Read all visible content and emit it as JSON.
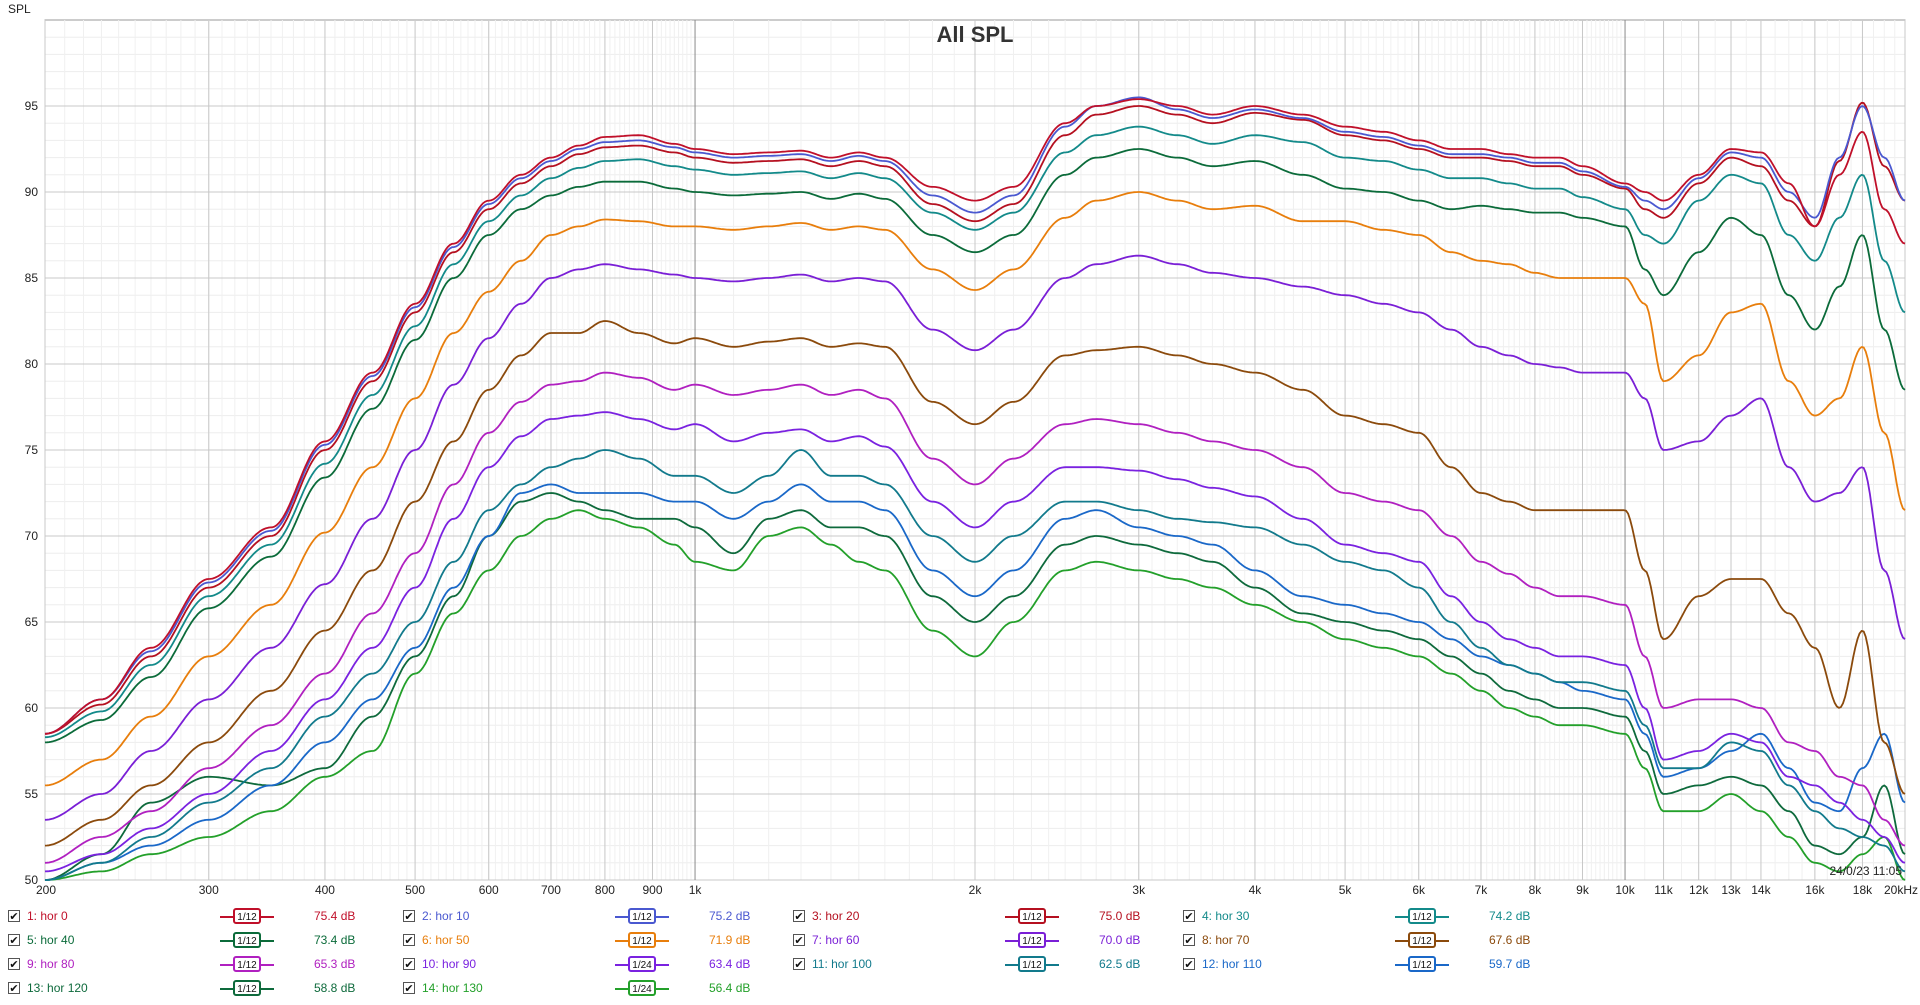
{
  "chart_data": {
    "type": "line",
    "title": "All SPL",
    "ylabel": "SPL",
    "xlabel": "",
    "x_scale": "log",
    "xlim": [
      200,
      20000
    ],
    "ylim": [
      50,
      100
    ],
    "grid": true,
    "y_ticks": [
      50,
      55,
      60,
      65,
      70,
      75,
      80,
      85,
      90,
      95
    ],
    "x_ticks": [
      {
        "f": 200,
        "label": "200"
      },
      {
        "f": 300,
        "label": "300"
      },
      {
        "f": 400,
        "label": "400"
      },
      {
        "f": 500,
        "label": "500"
      },
      {
        "f": 600,
        "label": "600"
      },
      {
        "f": 700,
        "label": "700"
      },
      {
        "f": 800,
        "label": "800"
      },
      {
        "f": 900,
        "label": "900"
      },
      {
        "f": 1000,
        "label": "1k"
      },
      {
        "f": 2000,
        "label": "2k"
      },
      {
        "f": 3000,
        "label": "3k"
      },
      {
        "f": 4000,
        "label": "4k"
      },
      {
        "f": 5000,
        "label": "5k"
      },
      {
        "f": 6000,
        "label": "6k"
      },
      {
        "f": 7000,
        "label": "7k"
      },
      {
        "f": 8000,
        "label": "8k"
      },
      {
        "f": 9000,
        "label": "9k"
      },
      {
        "f": 10000,
        "label": "10k"
      },
      {
        "f": 11000,
        "label": "11k",
        "dim": true
      },
      {
        "f": 12000,
        "label": "12k",
        "dim": true
      },
      {
        "f": 13000,
        "label": "13k",
        "dim": true
      },
      {
        "f": 14000,
        "label": "14k",
        "dim": true
      },
      {
        "f": 16000,
        "label": "16k",
        "dim": true
      },
      {
        "f": 18000,
        "label": "18k",
        "dim": true
      },
      {
        "f": 20000,
        "label": "20kHz"
      }
    ],
    "timestamp": "24/0/23 11:05",
    "x": [
      200,
      230,
      260,
      300,
      350,
      400,
      450,
      500,
      550,
      600,
      650,
      700,
      750,
      800,
      870,
      950,
      1000,
      1100,
      1200,
      1300,
      1400,
      1500,
      1600,
      1800,
      2000,
      2200,
      2500,
      2700,
      3000,
      3300,
      3600,
      4000,
      4500,
      5000,
      5500,
      6000,
      6500,
      7000,
      7500,
      8000,
      8500,
      9000,
      10000,
      10500,
      11000,
      12000,
      13000,
      14000,
      15000,
      16000,
      17000,
      18000,
      19000,
      20000
    ],
    "series": [
      {
        "name": "1: hor 0",
        "color": "#c0102a",
        "values": [
          58.5,
          60.5,
          63.5,
          67.5,
          70.5,
          75.5,
          79.5,
          83.5,
          87.0,
          89.5,
          91.0,
          92.0,
          92.7,
          93.2,
          93.3,
          92.8,
          92.5,
          92.2,
          92.3,
          92.4,
          92.0,
          92.3,
          92.0,
          90.3,
          89.5,
          90.3,
          94.0,
          95.0,
          95.4,
          95.0,
          94.5,
          95.0,
          94.5,
          93.8,
          93.5,
          93.0,
          92.5,
          92.5,
          92.2,
          92.0,
          92.0,
          91.5,
          90.5,
          90.0,
          89.5,
          91.0,
          92.5,
          92.3,
          90.5,
          88.0,
          91.0,
          93.5,
          89.0,
          87.0
        ]
      },
      {
        "name": "2: hor 10",
        "color": "#4a58d0",
        "values": [
          58.5,
          60.5,
          63.3,
          67.3,
          70.3,
          75.3,
          79.3,
          83.3,
          86.8,
          89.3,
          90.8,
          91.8,
          92.5,
          92.9,
          93.0,
          92.6,
          92.3,
          92.0,
          92.1,
          92.2,
          91.8,
          92.1,
          91.8,
          89.8,
          88.8,
          89.8,
          93.8,
          95.0,
          95.5,
          94.8,
          94.3,
          94.8,
          94.3,
          93.5,
          93.2,
          92.7,
          92.2,
          92.2,
          92.0,
          91.7,
          91.7,
          91.2,
          90.3,
          89.5,
          89.0,
          90.8,
          92.3,
          92.0,
          90.0,
          88.5,
          92.0,
          95.0,
          92.0,
          89.5
        ]
      },
      {
        "name": "3: hor 20",
        "color": "#b51020",
        "values": [
          58.5,
          60.2,
          63.0,
          67.0,
          70.0,
          75.0,
          79.0,
          83.0,
          86.5,
          89.0,
          90.5,
          91.5,
          92.2,
          92.6,
          92.7,
          92.3,
          92.0,
          91.7,
          91.8,
          91.9,
          91.5,
          91.8,
          91.5,
          89.3,
          88.3,
          89.3,
          93.3,
          94.5,
          95.0,
          94.5,
          94.0,
          94.6,
          94.2,
          93.3,
          93.0,
          92.5,
          92.0,
          92.0,
          91.8,
          91.5,
          91.5,
          91.0,
          90.2,
          89.0,
          88.5,
          90.5,
          92.0,
          91.5,
          89.5,
          88.0,
          91.8,
          95.2,
          91.5,
          89.5
        ]
      },
      {
        "name": "4: hor 30",
        "color": "#138a8a",
        "values": [
          58.3,
          59.8,
          62.5,
          66.5,
          69.5,
          74.2,
          78.2,
          82.2,
          85.8,
          88.3,
          89.8,
          90.8,
          91.4,
          91.8,
          91.9,
          91.5,
          91.3,
          91.0,
          91.1,
          91.2,
          90.8,
          91.1,
          90.8,
          88.8,
          87.8,
          88.8,
          92.3,
          93.3,
          93.8,
          93.3,
          92.8,
          93.3,
          92.9,
          92.0,
          91.8,
          91.3,
          90.8,
          90.8,
          90.5,
          90.2,
          90.2,
          89.7,
          89.0,
          87.5,
          87.0,
          89.5,
          91.0,
          90.5,
          87.5,
          86.0,
          88.5,
          91.0,
          86.0,
          83.0
        ]
      },
      {
        "name": "5: hor 40",
        "color": "#0b6b3a",
        "values": [
          58.0,
          59.3,
          61.8,
          65.8,
          68.8,
          73.4,
          77.4,
          81.4,
          85.0,
          87.5,
          89.0,
          89.8,
          90.3,
          90.6,
          90.6,
          90.2,
          90.0,
          89.8,
          89.9,
          90.0,
          89.6,
          89.9,
          89.6,
          87.5,
          86.5,
          87.5,
          91.0,
          92.0,
          92.5,
          92.0,
          91.5,
          91.8,
          91.0,
          90.2,
          90.0,
          89.5,
          89.0,
          89.2,
          89.0,
          88.8,
          88.8,
          88.5,
          88.0,
          85.5,
          84.0,
          86.5,
          88.5,
          87.5,
          84.0,
          82.0,
          84.5,
          87.5,
          82.0,
          78.5
        ]
      },
      {
        "name": "6: hor 50",
        "color": "#e87e0c",
        "values": [
          55.5,
          57.0,
          59.5,
          63.0,
          66.0,
          70.2,
          74.0,
          78.0,
          81.8,
          84.2,
          86.0,
          87.5,
          88.0,
          88.4,
          88.3,
          88.0,
          88.0,
          87.8,
          88.0,
          88.2,
          87.8,
          88.0,
          87.8,
          85.5,
          84.3,
          85.5,
          88.5,
          89.5,
          90.0,
          89.5,
          89.0,
          89.2,
          88.3,
          88.3,
          87.8,
          87.5,
          86.5,
          86.0,
          85.8,
          85.3,
          85.0,
          85.0,
          85.0,
          83.5,
          79.0,
          80.5,
          83.0,
          83.5,
          79.0,
          77.0,
          78.0,
          81.0,
          76.0,
          71.5
        ]
      },
      {
        "name": "7: hor 60",
        "color": "#7a1fd6",
        "values": [
          53.5,
          55.0,
          57.5,
          60.5,
          63.5,
          67.2,
          71.0,
          75.0,
          78.8,
          81.5,
          83.5,
          85.0,
          85.5,
          85.8,
          85.5,
          85.2,
          85.0,
          84.8,
          85.0,
          85.2,
          84.8,
          85.0,
          84.8,
          82.0,
          80.8,
          82.0,
          85.0,
          85.8,
          86.3,
          85.8,
          85.3,
          85.0,
          84.5,
          84.0,
          83.5,
          83.0,
          82.0,
          81.0,
          80.5,
          80.0,
          79.8,
          79.5,
          79.5,
          78.0,
          75.0,
          75.5,
          77.0,
          78.0,
          74.0,
          72.0,
          72.5,
          74.0,
          68.0,
          64.0
        ]
      },
      {
        "name": "8: hor 70",
        "color": "#8b4a0c",
        "values": [
          52.0,
          53.5,
          55.5,
          58.0,
          61.0,
          64.5,
          68.0,
          72.0,
          75.5,
          78.5,
          80.5,
          81.8,
          81.8,
          82.5,
          81.8,
          81.2,
          81.5,
          81.0,
          81.3,
          81.5,
          81.0,
          81.2,
          81.0,
          77.8,
          76.5,
          77.8,
          80.5,
          80.8,
          81.0,
          80.5,
          80.0,
          79.5,
          78.5,
          77.0,
          76.5,
          76.0,
          74.0,
          72.5,
          72.0,
          71.5,
          71.5,
          71.5,
          71.5,
          68.0,
          64.0,
          66.5,
          67.5,
          67.5,
          65.5,
          63.5,
          60.0,
          64.5,
          58.0,
          55.0
        ]
      },
      {
        "name": "9: hor 80",
        "color": "#b020c0",
        "values": [
          51.0,
          52.5,
          54.0,
          56.5,
          59.0,
          62.0,
          65.5,
          69.0,
          73.0,
          76.0,
          77.8,
          78.8,
          79.0,
          79.5,
          79.2,
          78.5,
          78.8,
          78.2,
          78.5,
          78.8,
          78.2,
          78.5,
          78.0,
          74.5,
          73.0,
          74.5,
          76.5,
          76.8,
          76.5,
          76.0,
          75.5,
          75.0,
          74.0,
          72.5,
          72.0,
          71.5,
          70.0,
          68.5,
          67.8,
          67.0,
          66.5,
          66.5,
          66.0,
          63.0,
          60.0,
          60.5,
          60.5,
          60.0,
          58.0,
          57.5,
          56.0,
          55.5,
          53.5,
          52.0
        ]
      },
      {
        "name": "10: hor 90",
        "color": "#7a22e0",
        "values": [
          50.5,
          51.5,
          53.0,
          55.0,
          57.5,
          60.5,
          63.5,
          67.0,
          71.0,
          74.0,
          75.8,
          76.8,
          77.0,
          77.2,
          76.8,
          76.2,
          76.5,
          75.5,
          76.0,
          76.2,
          75.5,
          75.8,
          75.2,
          72.0,
          70.5,
          72.0,
          74.0,
          74.0,
          73.8,
          73.3,
          72.8,
          72.3,
          71.0,
          69.5,
          69.0,
          68.5,
          66.5,
          65.0,
          64.0,
          63.5,
          63.0,
          63.0,
          62.5,
          60.0,
          57.0,
          57.5,
          58.5,
          58.0,
          56.0,
          55.5,
          54.5,
          53.5,
          52.5,
          51.0
        ]
      },
      {
        "name": "11: hor 100",
        "color": "#127a8c",
        "values": [
          50.0,
          51.0,
          52.5,
          54.5,
          56.5,
          59.5,
          62.0,
          65.0,
          68.5,
          71.5,
          73.0,
          74.0,
          74.5,
          75.0,
          74.5,
          73.5,
          73.5,
          72.5,
          73.5,
          75.0,
          73.5,
          73.5,
          73.0,
          70.0,
          68.5,
          70.0,
          72.0,
          72.0,
          71.5,
          71.0,
          70.8,
          70.5,
          69.5,
          68.5,
          68.0,
          67.0,
          65.0,
          63.5,
          62.5,
          62.0,
          61.5,
          61.5,
          61.0,
          59.0,
          56.5,
          56.5,
          58.0,
          57.5,
          55.5,
          54.0,
          53.0,
          52.5,
          52.0,
          50.5
        ]
      },
      {
        "name": "12: hor 110",
        "color": "#1a68c8",
        "values": [
          50.0,
          51.0,
          52.0,
          53.5,
          55.5,
          58.0,
          60.5,
          63.5,
          67.0,
          70.0,
          72.5,
          73.0,
          72.5,
          72.5,
          72.5,
          72.0,
          72.0,
          71.0,
          72.0,
          73.0,
          72.0,
          72.0,
          71.5,
          68.0,
          66.5,
          68.0,
          71.0,
          71.5,
          70.5,
          70.0,
          69.5,
          68.0,
          66.5,
          66.0,
          65.5,
          65.0,
          64.0,
          63.0,
          62.5,
          62.0,
          61.5,
          61.0,
          60.5,
          58.5,
          56.0,
          56.5,
          57.5,
          58.5,
          56.5,
          54.5,
          54.0,
          56.5,
          58.5,
          54.5
        ]
      },
      {
        "name": "13: hor 120",
        "color": "#0e6a3c",
        "values": [
          50.0,
          51.5,
          54.5,
          56.0,
          55.5,
          56.5,
          59.5,
          63.0,
          66.5,
          70.0,
          72.0,
          72.5,
          72.0,
          71.5,
          71.0,
          71.0,
          70.5,
          69.0,
          71.0,
          71.5,
          70.5,
          70.5,
          70.0,
          66.5,
          65.0,
          66.5,
          69.5,
          70.0,
          69.5,
          69.0,
          68.5,
          67.0,
          65.5,
          65.0,
          64.5,
          64.0,
          63.0,
          62.0,
          61.0,
          60.5,
          60.0,
          60.0,
          59.5,
          57.5,
          55.0,
          55.5,
          56.0,
          55.5,
          54.0,
          52.0,
          51.5,
          52.5,
          55.5,
          51.5
        ]
      },
      {
        "name": "14: hor 130",
        "color": "#23a02a",
        "values": [
          50.0,
          50.5,
          51.5,
          52.5,
          54.0,
          56.0,
          57.5,
          62.0,
          65.5,
          68.0,
          70.0,
          71.0,
          71.5,
          71.0,
          70.5,
          69.5,
          68.5,
          68.0,
          70.0,
          70.5,
          69.5,
          68.5,
          68.0,
          64.5,
          63.0,
          65.0,
          68.0,
          68.5,
          68.0,
          67.5,
          67.0,
          66.0,
          65.0,
          64.0,
          63.5,
          63.0,
          62.0,
          61.0,
          60.0,
          59.5,
          59.0,
          59.0,
          58.5,
          56.5,
          54.0,
          54.0,
          55.0,
          54.0,
          52.5,
          51.0,
          50.5,
          51.5,
          52.5,
          50.0
        ]
      }
    ]
  },
  "legend": {
    "rows": [
      [
        {
          "name": "1: hor 0",
          "smooth": "1/12",
          "value": "75.4 dB",
          "color": "#c0102a"
        },
        {
          "name": "2: hor 10",
          "smooth": "1/12",
          "value": "75.2 dB",
          "color": "#4a58d0"
        },
        {
          "name": "3: hor 20",
          "smooth": "1/12",
          "value": "75.0 dB",
          "color": "#b51020"
        },
        {
          "name": "4: hor 30",
          "smooth": "1/12",
          "value": "74.2 dB",
          "color": "#138a8a"
        }
      ],
      [
        {
          "name": "5: hor 40",
          "smooth": "1/12",
          "value": "73.4 dB",
          "color": "#0b6b3a"
        },
        {
          "name": "6: hor 50",
          "smooth": "1/12",
          "value": "71.9 dB",
          "color": "#e87e0c"
        },
        {
          "name": "7: hor 60",
          "smooth": "1/12",
          "value": "70.0 dB",
          "color": "#7a1fd6"
        },
        {
          "name": "8: hor 70",
          "smooth": "1/12",
          "value": "67.6 dB",
          "color": "#8b4a0c"
        }
      ],
      [
        {
          "name": "9: hor 80",
          "smooth": "1/12",
          "value": "65.3 dB",
          "color": "#b020c0"
        },
        {
          "name": "10: hor 90",
          "smooth": "1/24",
          "value": "63.4 dB",
          "color": "#7a22e0"
        },
        {
          "name": "11: hor 100",
          "smooth": "1/12",
          "value": "62.5 dB",
          "color": "#127a8c"
        },
        {
          "name": "12: hor 110",
          "smooth": "1/12",
          "value": "59.7 dB",
          "color": "#1a68c8"
        }
      ],
      [
        {
          "name": "13: hor 120",
          "smooth": "1/12",
          "value": "58.8 dB",
          "color": "#0e6a3c"
        },
        {
          "name": "14: hor 130",
          "smooth": "1/24",
          "value": "56.4 dB",
          "color": "#23a02a"
        }
      ]
    ]
  }
}
